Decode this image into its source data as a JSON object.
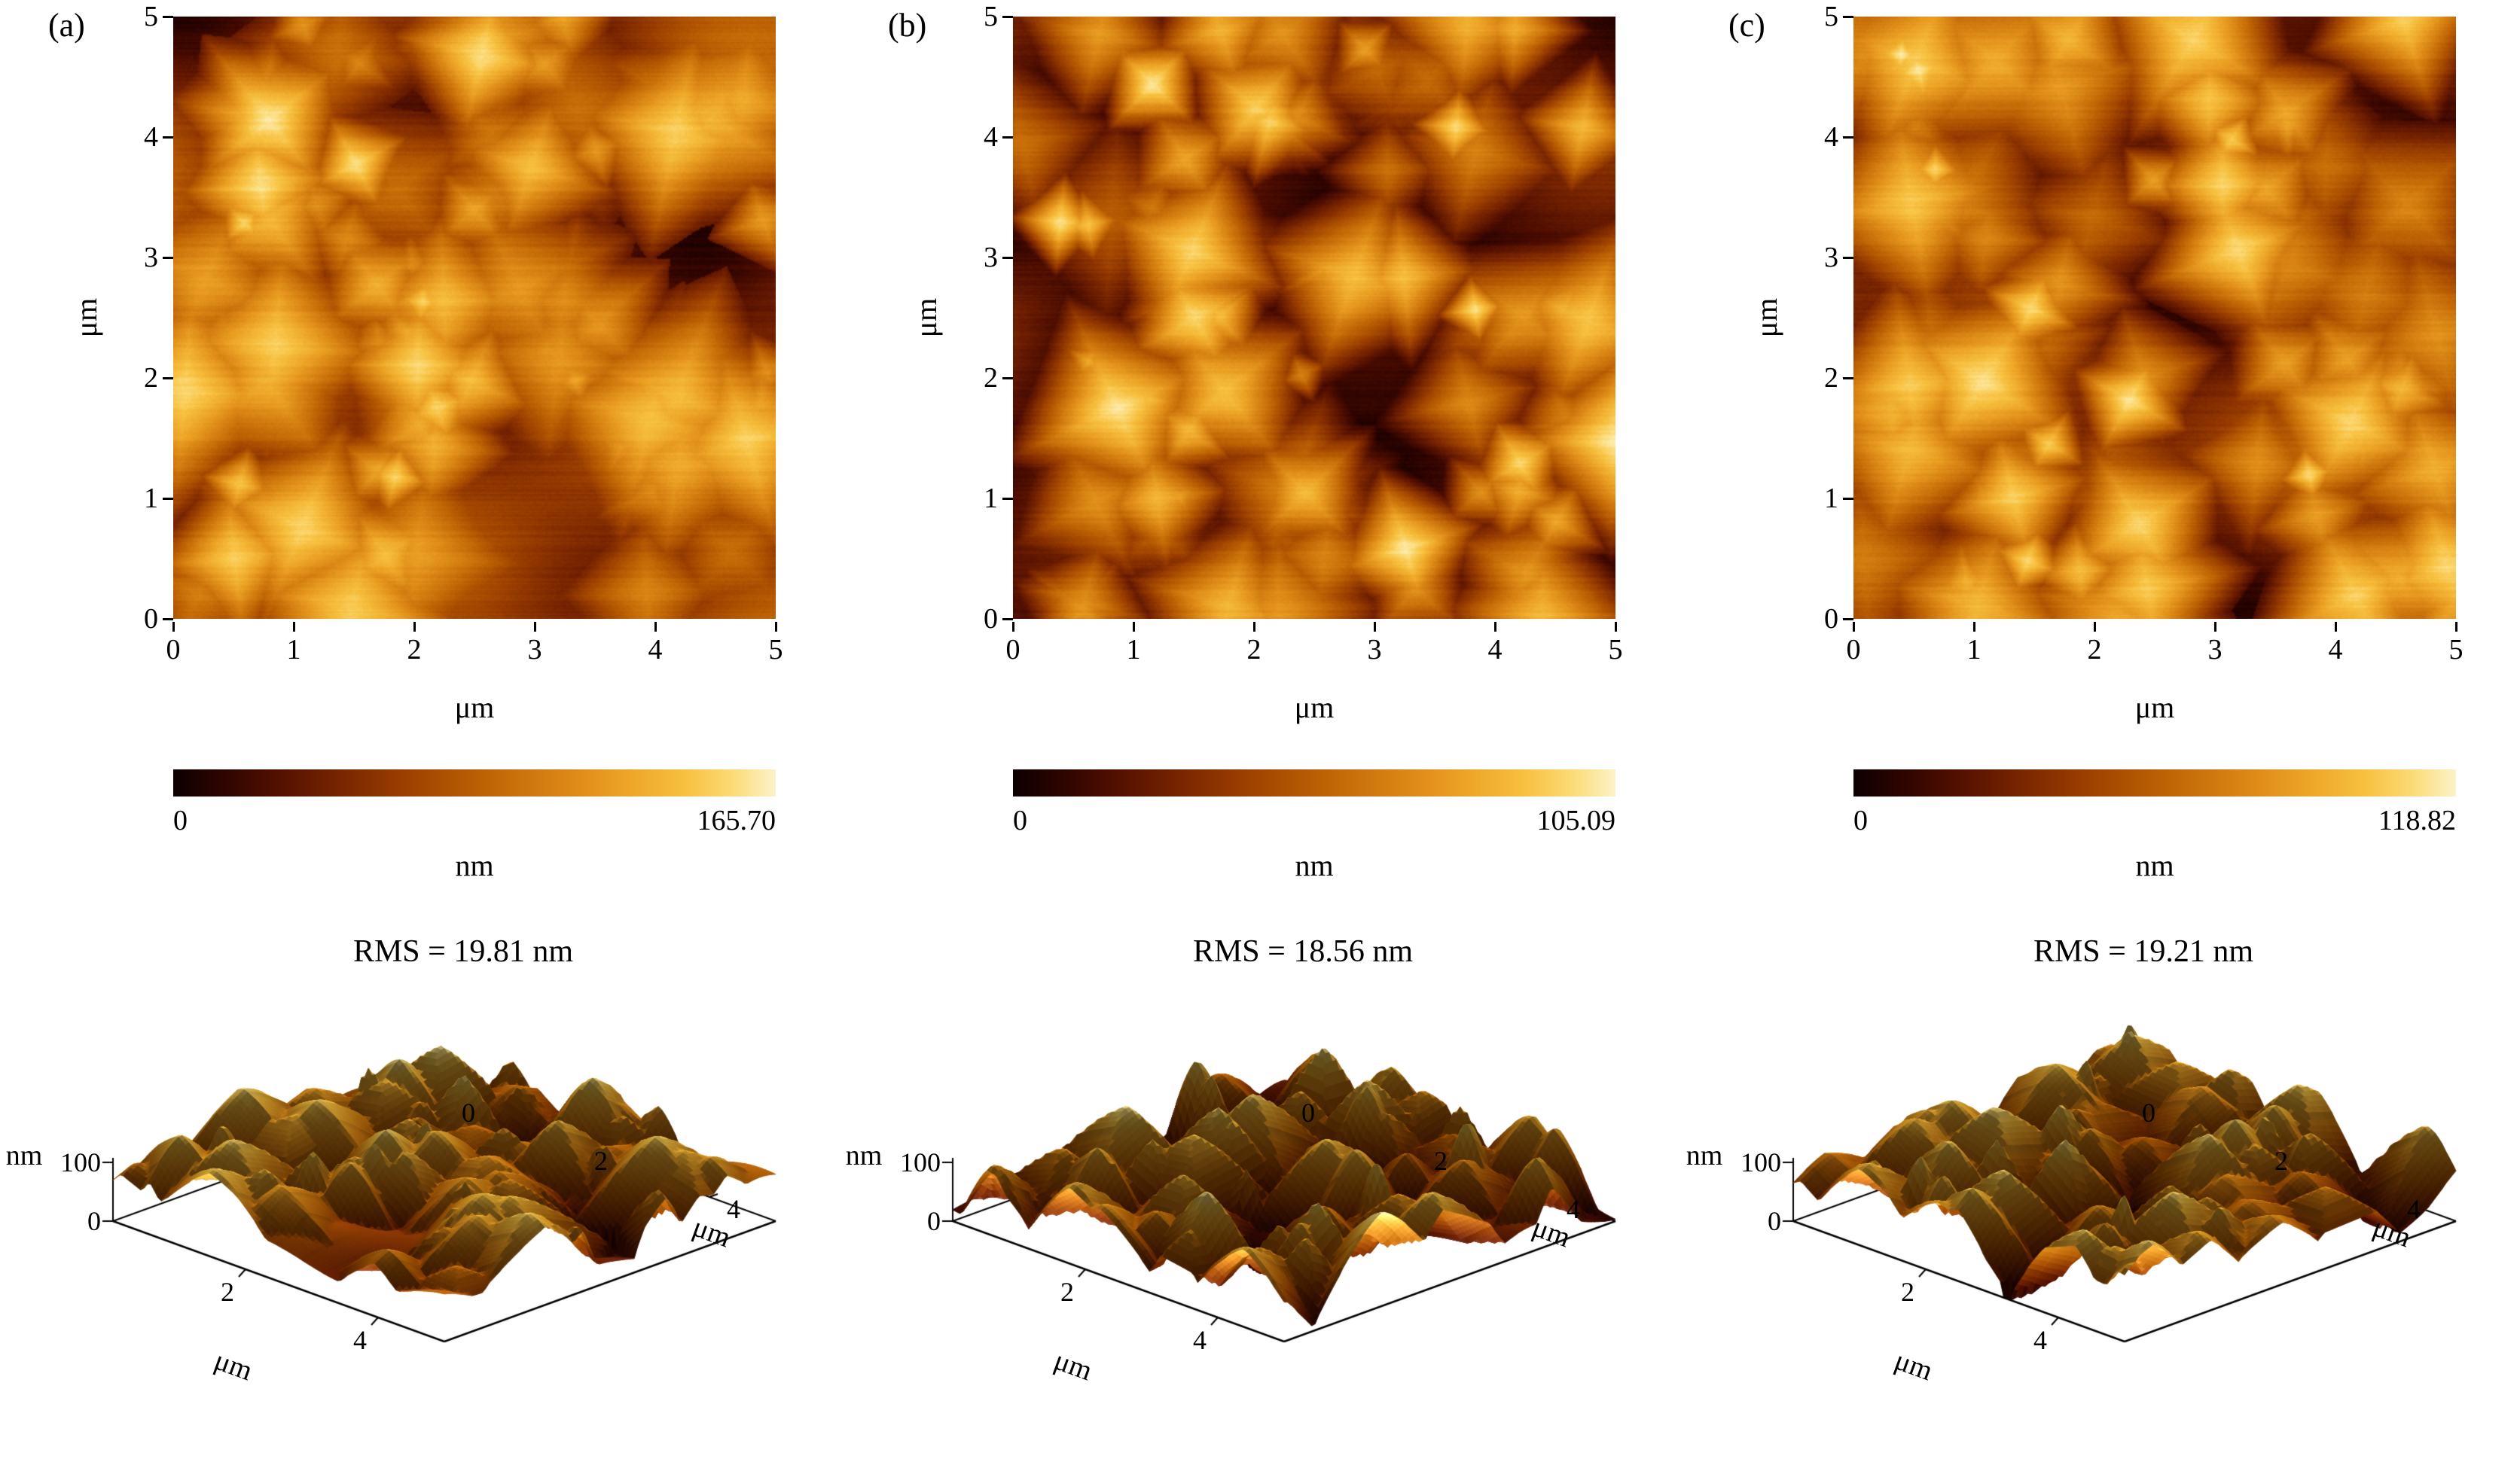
{
  "figure": {
    "panels": [
      {
        "label": "(a)",
        "colorbar_max": "165.70",
        "rms_title": "RMS = 19.81 nm"
      },
      {
        "label": "(b)",
        "colorbar_max": "105.09",
        "rms_title": "RMS = 18.56 nm"
      },
      {
        "label": "(c)",
        "colorbar_max": "118.82",
        "rms_title": "RMS = 19.21 nm"
      }
    ],
    "shared": {
      "map_ticks": [
        "0",
        "1",
        "2",
        "3",
        "4",
        "5"
      ],
      "map_xlabel": "μm",
      "map_ylabel": "μm",
      "colorbar_min": "0",
      "colorbar_unit": "nm",
      "surf_zlabel": "nm",
      "surf_ztick_top": "100",
      "surf_ztick_bottom": "0",
      "surf_left_ticks": [
        "2",
        "4"
      ],
      "surf_left_label": "μm",
      "surf_right_ticks": [
        "0",
        "2",
        "4"
      ],
      "surf_right_label": "μm"
    }
  },
  "chart_data": [
    {
      "type": "heatmap",
      "panel": "(a)",
      "xlabel": "μm",
      "ylabel": "μm",
      "x_range": [
        0,
        5
      ],
      "y_range": [
        0,
        5
      ],
      "xticks": [
        0,
        1,
        2,
        3,
        4,
        5
      ],
      "yticks": [
        0,
        1,
        2,
        3,
        4,
        5
      ],
      "colorbar": {
        "label": "nm",
        "min": 0,
        "max": 165.7
      },
      "content": "AFM surface topography map, pyramidal grains, dark-brown to golden-yellow height palette"
    },
    {
      "type": "surface",
      "panel": "(a)",
      "title": "RMS = 19.81 nm",
      "rms_nm": 19.81,
      "zlabel": "nm",
      "zticks": [
        0,
        100
      ],
      "xlabel": "μm",
      "xticks": [
        2,
        4
      ],
      "x_range": [
        0,
        5
      ],
      "ylabel": "μm",
      "yticks": [
        0,
        2,
        4
      ],
      "y_range": [
        0,
        5
      ],
      "content": "3D rendering of the same AFM topography"
    },
    {
      "type": "heatmap",
      "panel": "(b)",
      "xlabel": "μm",
      "ylabel": "μm",
      "x_range": [
        0,
        5
      ],
      "y_range": [
        0,
        5
      ],
      "xticks": [
        0,
        1,
        2,
        3,
        4,
        5
      ],
      "yticks": [
        0,
        1,
        2,
        3,
        4,
        5
      ],
      "colorbar": {
        "label": "nm",
        "min": 0,
        "max": 105.09
      },
      "content": "AFM surface topography map, pyramidal grains, dark-brown to golden-yellow height palette"
    },
    {
      "type": "surface",
      "panel": "(b)",
      "title": "RMS = 18.56 nm",
      "rms_nm": 18.56,
      "zlabel": "nm",
      "zticks": [
        0,
        100
      ],
      "xlabel": "μm",
      "xticks": [
        2,
        4
      ],
      "x_range": [
        0,
        5
      ],
      "ylabel": "μm",
      "yticks": [
        0,
        2,
        4
      ],
      "y_range": [
        0,
        5
      ],
      "content": "3D rendering of the same AFM topography"
    },
    {
      "type": "heatmap",
      "panel": "(c)",
      "xlabel": "μm",
      "ylabel": "μm",
      "x_range": [
        0,
        5
      ],
      "y_range": [
        0,
        5
      ],
      "xticks": [
        0,
        1,
        2,
        3,
        4,
        5
      ],
      "yticks": [
        0,
        1,
        2,
        3,
        4,
        5
      ],
      "colorbar": {
        "label": "nm",
        "min": 0,
        "max": 118.82
      },
      "content": "AFM surface topography map, pyramidal grains, dark-brown to golden-yellow height palette"
    },
    {
      "type": "surface",
      "panel": "(c)",
      "title": "RMS = 19.21 nm",
      "rms_nm": 19.21,
      "zlabel": "nm",
      "zticks": [
        0,
        100
      ],
      "xlabel": "μm",
      "xticks": [
        2,
        4
      ],
      "x_range": [
        0,
        5
      ],
      "ylabel": "μm",
      "yticks": [
        0,
        2,
        4
      ],
      "y_range": [
        0,
        5
      ],
      "content": "3D rendering of the same AFM topography"
    }
  ]
}
